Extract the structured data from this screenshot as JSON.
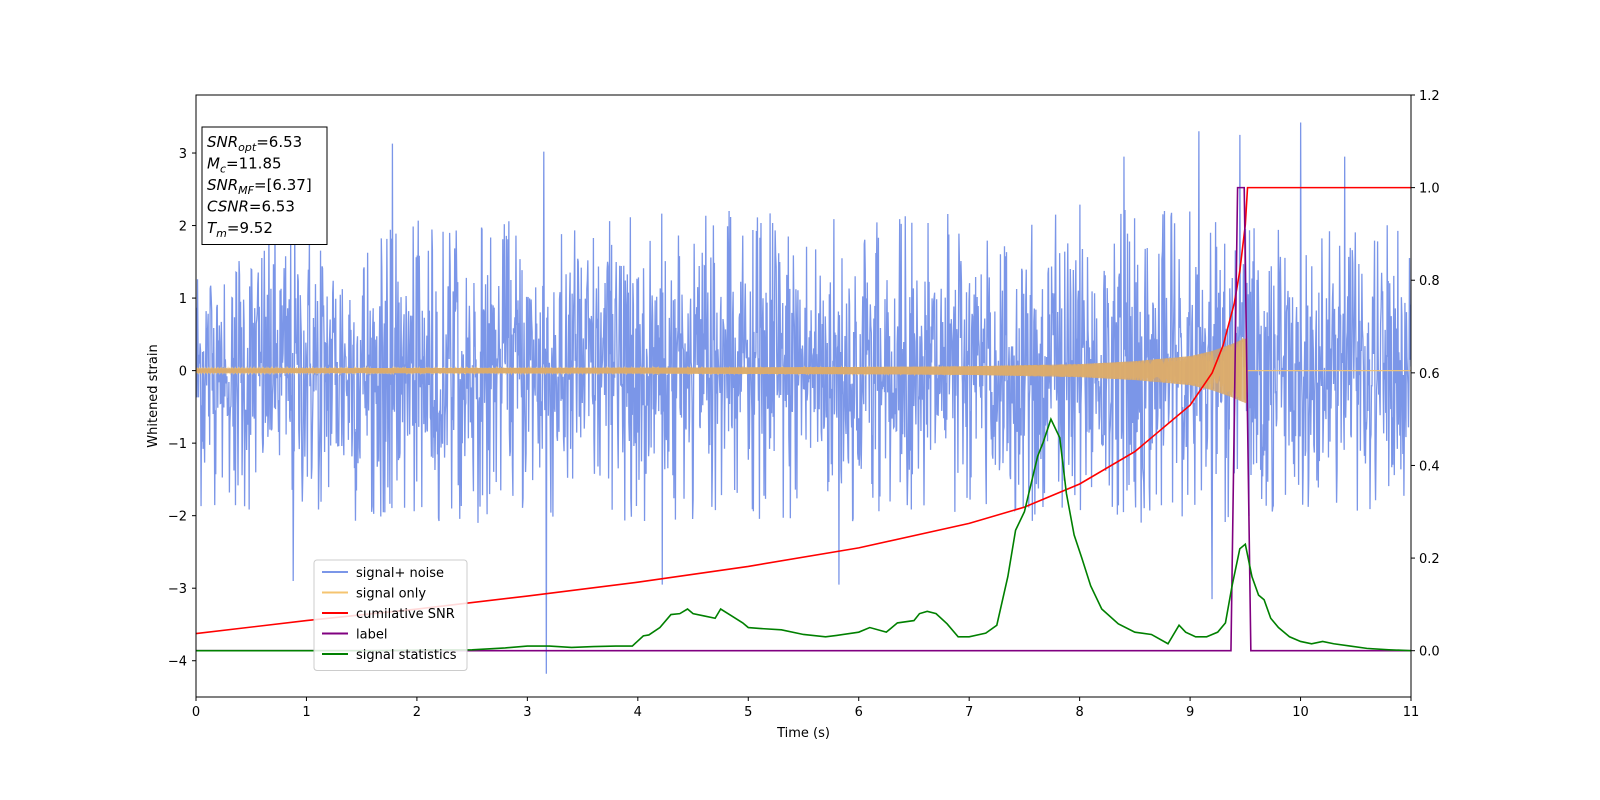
{
  "chart_data": {
    "type": "line",
    "xlabel": "Time (s)",
    "ylabel": "Whitened strain",
    "xlim": [
      0,
      11
    ],
    "ylim": [
      -4.5,
      3.8
    ],
    "y2lim": [
      -0.1,
      1.2
    ],
    "x_ticks": [
      0,
      1,
      2,
      3,
      4,
      5,
      6,
      7,
      8,
      9,
      10,
      11
    ],
    "y_ticks": [
      -4,
      -3,
      -2,
      -1,
      0,
      1,
      2,
      3
    ],
    "y2_ticks": [
      "0.0",
      "0.2",
      "0.4",
      "0.6",
      "0.8",
      "1.0",
      "1.2"
    ],
    "grid": false,
    "legend_position": "lower-left",
    "info_box": {
      "position": "top-left",
      "lines": [
        {
          "base": "SNR",
          "sub": "opt",
          "rest": "=6.53"
        },
        {
          "base": "M",
          "sub": "c",
          "rest": "=11.85"
        },
        {
          "base": "SNR",
          "sub": "MF",
          "rest": "=[6.37]"
        },
        {
          "base": "CSNR",
          "sub": "",
          "rest": "=6.53"
        },
        {
          "base": "T",
          "sub": "m",
          "rest": "=9.52"
        }
      ]
    },
    "series": [
      {
        "name": "signal+ noise",
        "axis": "left",
        "color": "#7b96e8",
        "kind": "noise",
        "envelope": {
          "x": [
            0,
            1,
            2,
            3,
            4,
            5,
            6,
            7,
            8,
            9,
            9.4,
            9.6,
            10,
            11
          ],
          "typical_upper": [
            1.9,
            2.0,
            2.0,
            2.0,
            2.1,
            2.1,
            2.1,
            2.1,
            2.2,
            2.2,
            2.3,
            2.0,
            2.0,
            1.9
          ],
          "typical_lower": [
            -1.9,
            -2.0,
            -2.0,
            -2.0,
            -2.0,
            -2.0,
            -2.0,
            -2.0,
            -2.0,
            -2.0,
            -2.0,
            -1.9,
            -1.9,
            -1.8
          ]
        },
        "peaks": [
          {
            "x": 1.78,
            "y": 3.13
          },
          {
            "x": 3.15,
            "y": 3.02
          },
          {
            "x": 3.17,
            "y": -4.18
          },
          {
            "x": 0.88,
            "y": -2.9
          },
          {
            "x": 8.4,
            "y": 2.95
          },
          {
            "x": 9.08,
            "y": 3.3
          },
          {
            "x": 9.45,
            "y": 3.25
          },
          {
            "x": 10.0,
            "y": 3.42
          },
          {
            "x": 10.4,
            "y": 2.95
          },
          {
            "x": 9.2,
            "y": -3.15
          },
          {
            "x": 5.82,
            "y": -2.95
          },
          {
            "x": 4.22,
            "y": -2.95
          }
        ]
      },
      {
        "name": "signal only",
        "axis": "left",
        "color": "#f5c470",
        "kind": "chirp",
        "t_merge": 9.52,
        "amplitude_envelope": {
          "x": [
            0,
            2,
            4,
            6,
            7,
            8,
            8.5,
            9,
            9.2,
            9.4,
            9.5,
            9.52
          ],
          "amp": [
            0.03,
            0.035,
            0.04,
            0.05,
            0.06,
            0.09,
            0.13,
            0.2,
            0.27,
            0.38,
            0.45,
            0.45
          ]
        }
      },
      {
        "name": "cumilative SNR",
        "axis": "right",
        "color": "#ff0000",
        "x": [
          0,
          1,
          2,
          3,
          4,
          5,
          6,
          7,
          7.5,
          8,
          8.5,
          9,
          9.2,
          9.3,
          9.4,
          9.45,
          9.5,
          9.52,
          11
        ],
        "y": [
          0.037,
          0.065,
          0.09,
          0.118,
          0.148,
          0.182,
          0.222,
          0.275,
          0.31,
          0.36,
          0.43,
          0.53,
          0.6,
          0.66,
          0.75,
          0.82,
          0.92,
          1.0,
          1.0
        ]
      },
      {
        "name": "label",
        "axis": "right",
        "color": "#800080",
        "x": [
          0,
          9.37,
          9.43,
          9.49,
          9.55,
          11
        ],
        "y": [
          0,
          0,
          1,
          1,
          0,
          0
        ]
      },
      {
        "name": "signal statistics",
        "axis": "right",
        "color": "#008000",
        "x": [
          0,
          0.5,
          1,
          1.5,
          2,
          2.5,
          2.8,
          3.0,
          3.2,
          3.4,
          3.6,
          3.8,
          3.95,
          4.05,
          4.1,
          4.2,
          4.3,
          4.38,
          4.45,
          4.5,
          4.6,
          4.7,
          4.75,
          4.85,
          4.95,
          5.0,
          5.1,
          5.3,
          5.5,
          5.7,
          5.8,
          6.0,
          6.1,
          6.25,
          6.35,
          6.5,
          6.55,
          6.62,
          6.7,
          6.8,
          6.9,
          7.0,
          7.15,
          7.25,
          7.35,
          7.42,
          7.5,
          7.58,
          7.62,
          7.67,
          7.74,
          7.82,
          7.88,
          7.95,
          8.02,
          8.1,
          8.2,
          8.35,
          8.5,
          8.65,
          8.8,
          8.9,
          8.96,
          9.05,
          9.15,
          9.25,
          9.32,
          9.38,
          9.45,
          9.5,
          9.56,
          9.62,
          9.67,
          9.73,
          9.8,
          9.9,
          10.0,
          10.1,
          10.2,
          10.3,
          10.45,
          10.6,
          10.8,
          11
        ],
        "y": [
          0.0,
          0.0,
          0.0,
          0.0,
          0.001,
          0.002,
          0.006,
          0.01,
          0.01,
          0.007,
          0.009,
          0.01,
          0.01,
          0.032,
          0.034,
          0.05,
          0.078,
          0.08,
          0.09,
          0.08,
          0.075,
          0.07,
          0.09,
          0.075,
          0.06,
          0.05,
          0.048,
          0.045,
          0.035,
          0.03,
          0.033,
          0.04,
          0.05,
          0.04,
          0.06,
          0.065,
          0.08,
          0.085,
          0.08,
          0.058,
          0.03,
          0.03,
          0.038,
          0.055,
          0.16,
          0.26,
          0.3,
          0.38,
          0.42,
          0.45,
          0.5,
          0.46,
          0.34,
          0.25,
          0.2,
          0.14,
          0.09,
          0.058,
          0.04,
          0.035,
          0.015,
          0.055,
          0.04,
          0.03,
          0.03,
          0.04,
          0.06,
          0.14,
          0.22,
          0.23,
          0.16,
          0.12,
          0.11,
          0.07,
          0.05,
          0.03,
          0.02,
          0.015,
          0.02,
          0.015,
          0.01,
          0.005,
          0.002,
          0.0
        ]
      }
    ]
  }
}
